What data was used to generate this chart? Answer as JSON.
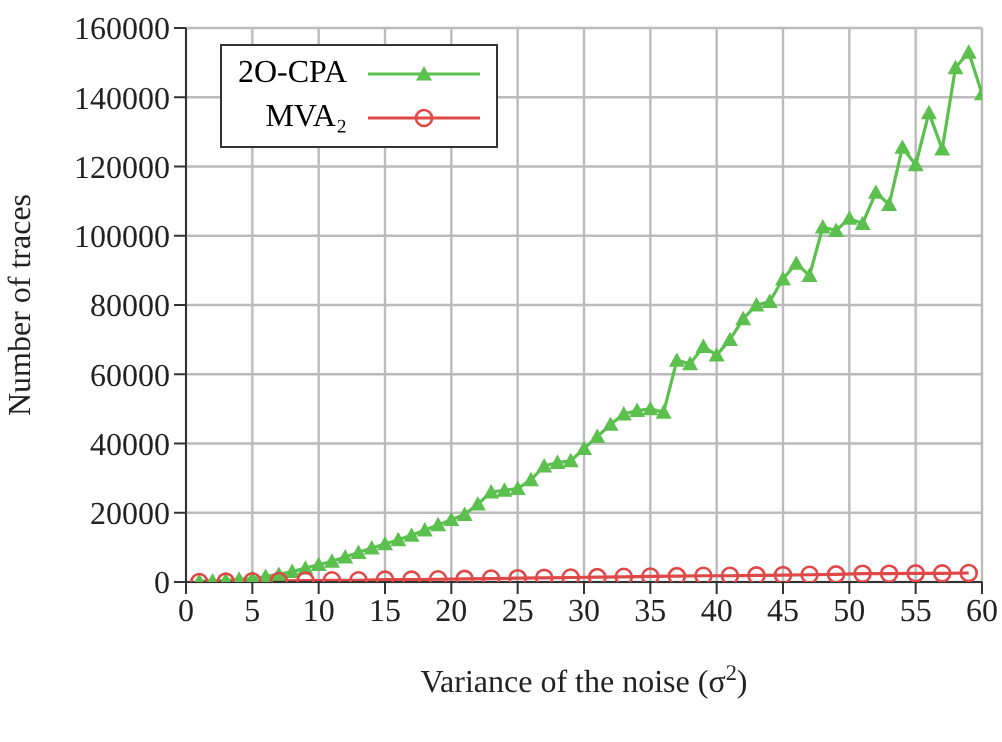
{
  "chart_data": {
    "type": "line",
    "xlabel": "Variance of the noise (σ$^{2}$)",
    "ylabel": "Number of traces",
    "xlim": [
      0,
      60
    ],
    "xticks": [
      0,
      5,
      10,
      15,
      20,
      25,
      30,
      35,
      40,
      45,
      50,
      55,
      60
    ],
    "ylim": [
      0,
      160000
    ],
    "yticks": [
      0,
      20000,
      40000,
      60000,
      80000,
      100000,
      120000,
      140000,
      160000
    ],
    "grid": true,
    "legend": "top left",
    "series": [
      {
        "name": "2O-CPA",
        "color": "#5cc04e",
        "marker": "triangle",
        "x": [
          1,
          2,
          3,
          4,
          5,
          6,
          7,
          8,
          9,
          10,
          11,
          12,
          13,
          14,
          15,
          16,
          17,
          18,
          19,
          20,
          21,
          22,
          23,
          24,
          25,
          26,
          27,
          28,
          29,
          30,
          31,
          32,
          33,
          34,
          35,
          36,
          37,
          38,
          39,
          40,
          41,
          42,
          43,
          44,
          45,
          46,
          47,
          48,
          49,
          50,
          51,
          52,
          53,
          54,
          55,
          56,
          57,
          58,
          59,
          60
        ],
        "values": [
          200,
          300,
          500,
          800,
          1000,
          1600,
          2200,
          3000,
          4000,
          5000,
          6000,
          7200,
          8500,
          9800,
          11000,
          12200,
          13500,
          15000,
          16500,
          18000,
          19500,
          22500,
          26000,
          26500,
          27000,
          29500,
          33500,
          34500,
          35000,
          38500,
          42000,
          45500,
          48500,
          49500,
          50000,
          49000,
          64000,
          63000,
          68000,
          65500,
          70000,
          76000,
          80000,
          81000,
          87500,
          92000,
          88500,
          102500,
          101500,
          105000,
          103500,
          112500,
          109000,
          125500,
          120500,
          135500,
          125000,
          148500,
          153000,
          141000
        ]
      },
      {
        "name": "MVA₂",
        "color": "#e04848",
        "marker": "circle",
        "x": [
          1,
          3,
          5,
          7,
          9,
          11,
          13,
          15,
          17,
          19,
          21,
          23,
          25,
          27,
          29,
          31,
          33,
          35,
          37,
          39,
          41,
          43,
          45,
          47,
          49,
          51,
          53,
          55,
          57,
          59
        ],
        "values": [
          0,
          100,
          200,
          300,
          400,
          500,
          500,
          700,
          700,
          800,
          900,
          1000,
          1100,
          1200,
          1300,
          1400,
          1500,
          1600,
          1700,
          1800,
          1800,
          1900,
          2000,
          2100,
          2200,
          2400,
          2400,
          2500,
          2500,
          2600
        ]
      }
    ]
  }
}
